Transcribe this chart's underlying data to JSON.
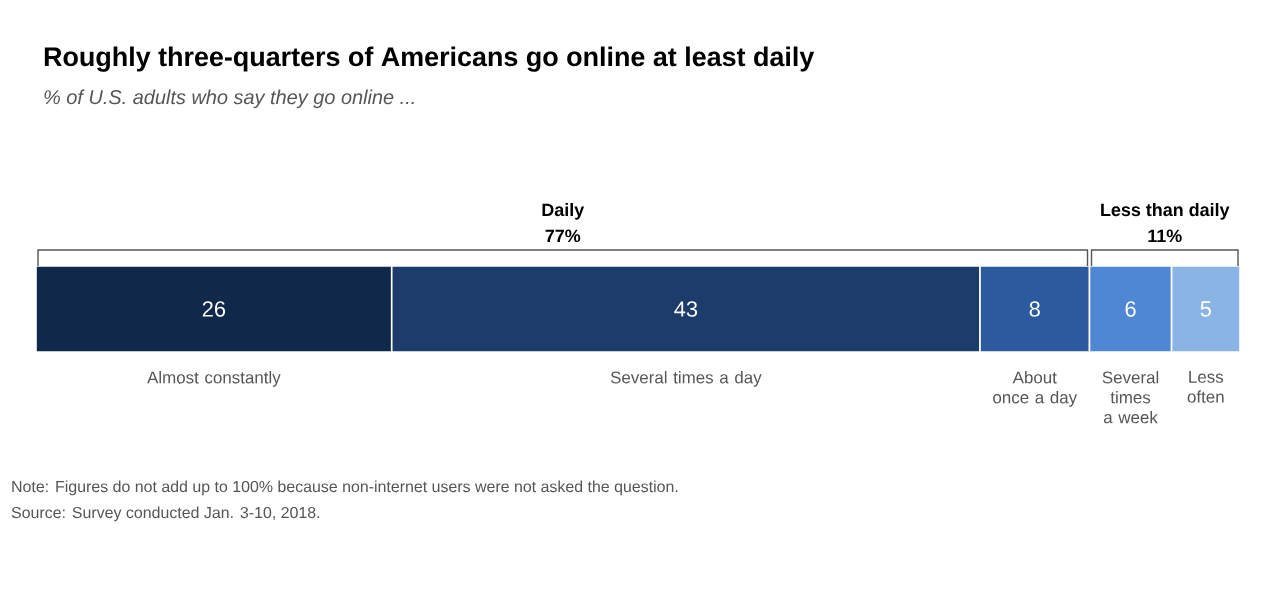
{
  "chart_data": {
    "type": "bar",
    "orientation": "horizontal",
    "stacked": true,
    "title": "Roughly three-quarters of Americans go online at least daily",
    "subtitle": "% of U.S. adults who say they go online ...",
    "categories": [
      null
    ],
    "series": [
      {
        "name": "Almost constantly",
        "color": "#10294b",
        "values": [
          26
        ]
      },
      {
        "name": "Several times a day",
        "color": "#1c3d6c",
        "values": [
          43
        ]
      },
      {
        "name": "About once a day",
        "color": "#2b5a9e",
        "values": [
          8
        ]
      },
      {
        "name": "Several times a week",
        "color": "#4f87d4",
        "values": [
          6
        ]
      },
      {
        "name": "Less often",
        "color": "#8ab3e6",
        "values": [
          5
        ]
      }
    ],
    "data_labels": true,
    "tick_labels": false,
    "annotations": [
      "Daily",
      "77%",
      "Less than daily",
      "11%",
      "Note: Figures do not add up to 100% because non-internet users were not asked the question.",
      "Source: Survey conducted Jan. 3-10, 2018."
    ]
  }
}
